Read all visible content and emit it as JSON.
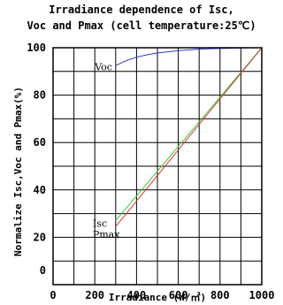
{
  "chart_data": {
    "type": "line",
    "title": "Irradiance dependence of Isc,",
    "subtitle": "Voc and Pmax (cell temperature:25℃)",
    "xlabel": "Irradiance (W/㎡)",
    "ylabel": "Normalize Isc,Voc and Pmax(%)",
    "xlim": [
      0,
      1000
    ],
    "ylim": [
      0,
      100
    ],
    "x_ticks": [
      "0",
      "200",
      "400",
      "600",
      "800",
      "1000"
    ],
    "y_ticks": [
      "0",
      "20",
      "40",
      "60",
      "80",
      "100"
    ],
    "grid": true,
    "series": [
      {
        "name": "Voc",
        "color": "#3333cc",
        "x": [
          300,
          350,
          400,
          450,
          500,
          600,
          700,
          800,
          900,
          1000
        ],
        "y": [
          92.5,
          94.5,
          96,
          97,
          97.8,
          98.8,
          99.4,
          99.7,
          99.9,
          100
        ]
      },
      {
        "name": "Isc",
        "color": "#33cc33",
        "x": [
          300,
          1000
        ],
        "y": [
          27,
          100
        ]
      },
      {
        "name": "Pmax",
        "color": "#dd3333",
        "x": [
          300,
          1000
        ],
        "y": [
          24.5,
          100
        ]
      }
    ],
    "annotations": [
      "Voc",
      "Isc",
      "Pmax"
    ]
  }
}
